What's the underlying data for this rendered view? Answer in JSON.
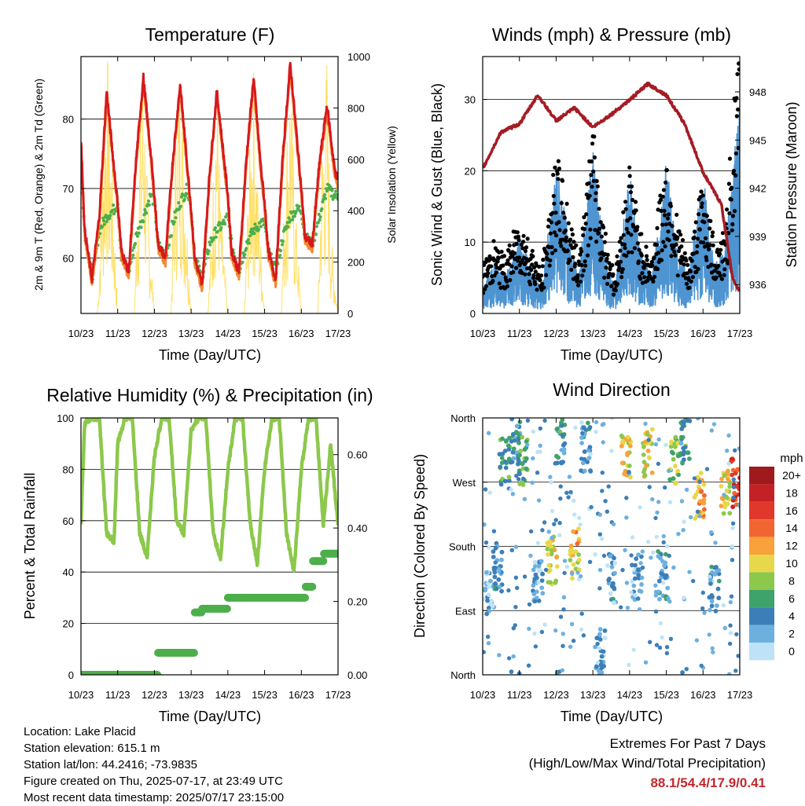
{
  "days": [
    "10/23",
    "11/23",
    "12/23",
    "13/23",
    "14/23",
    "15/23",
    "16/23",
    "17/23"
  ],
  "colors": {
    "temp2m": "#d7191c",
    "temp9m": "#f28a30",
    "dewpoint": "#4daf4a",
    "solar": "#ffe066",
    "wind": "#4d94d1",
    "gust": "#000000",
    "pressure": "#a51c24",
    "rh": "#8cc84b",
    "precip": "#4daf4a",
    "extremes": "#c1272d"
  },
  "panels": {
    "temperature": {
      "title": "Temperature (F)",
      "xlabel": "Time (Day/UTC)",
      "ylabel_left": "2m & 9m T (Red, Orange) & 2m Td (Green)",
      "ylabel_right": "Solar Insolation (Yellow)",
      "left_ticks": [
        "60",
        "70",
        "80"
      ],
      "right_ticks": [
        "0",
        "200",
        "400",
        "600",
        "800",
        "1000"
      ]
    },
    "winds": {
      "title": "Winds (mph) & Pressure (mb)",
      "xlabel": "Time (Day/UTC)",
      "ylabel_left": "Sonic Wind & Gust (Blue, Black)",
      "ylabel_right": "Station Pressure (Maroon)",
      "left_ticks": [
        "0",
        "10",
        "20",
        "30"
      ],
      "right_ticks": [
        "936",
        "939",
        "942",
        "945",
        "948"
      ]
    },
    "humidity": {
      "title": "Relative Humidity (%) & Precipitation (in)",
      "xlabel": "Time (Day/UTC)",
      "ylabel_left": "Percent & Total Rainfall",
      "left_ticks": [
        "0",
        "20",
        "40",
        "60",
        "80",
        "100"
      ],
      "right_ticks": [
        "0.00",
        "0.20",
        "0.40",
        "0.60"
      ]
    },
    "direction": {
      "title": "Wind Direction",
      "xlabel": "Time (Day/UTC)",
      "ylabel_left": "Direction (Colored By Speed)",
      "dir_ticks": [
        "North",
        "East",
        "South",
        "West",
        "North"
      ],
      "legend_title": "mph",
      "legend_labels": [
        "20+",
        "18",
        "16",
        "14",
        "12",
        "10",
        "8",
        "6",
        "4",
        "2",
        "0"
      ],
      "legend_colors": [
        "#9e1a1c",
        "#c42127",
        "#e0382b",
        "#f16630",
        "#f9a13a",
        "#e6d84a",
        "#8cc84b",
        "#3ea26b",
        "#3c7fb8",
        "#6db0e0",
        "#bfe3f6"
      ]
    }
  },
  "chart_data": [
    {
      "type": "line",
      "title": "Temperature (F)",
      "xlabel": "Time (Day/UTC)",
      "ylabel": "2m & 9m T (Red, Orange) & 2m Td (Green)",
      "ylim": [
        52,
        89
      ],
      "y2lim": [
        0,
        1000
      ],
      "grid": true,
      "series": [
        {
          "name": "2m T",
          "axis": "left",
          "x": [
            0,
            0.1,
            0.3,
            0.5,
            0.7,
            0.9,
            1,
            1.1,
            1.3,
            1.5,
            1.7,
            1.9,
            2,
            2.1,
            2.3,
            2.5,
            2.7,
            2.9,
            3,
            3.1,
            3.3,
            3.5,
            3.7,
            3.9,
            4,
            4.1,
            4.3,
            4.5,
            4.7,
            4.9,
            5,
            5.1,
            5.3,
            5.5,
            5.7,
            5.9,
            6,
            6.1,
            6.3,
            6.5,
            6.7,
            6.9,
            7
          ],
          "values": [
            77,
            64,
            57,
            66,
            84,
            73,
            68,
            61,
            58,
            74,
            86,
            75,
            69,
            62,
            60,
            74,
            85,
            73,
            67,
            60,
            56,
            72,
            84,
            74,
            69,
            61,
            58,
            74,
            86,
            73,
            68,
            61,
            57,
            75,
            88,
            76,
            70,
            63,
            62,
            74,
            82,
            73,
            71
          ]
        },
        {
          "name": "2m Td",
          "axis": "left",
          "x": [
            0,
            0.1,
            0.3,
            0.5,
            0.7,
            0.9,
            1,
            1.1,
            1.3,
            1.5,
            1.7,
            1.9,
            2,
            2.1,
            2.3,
            2.5,
            2.7,
            2.9,
            3,
            3.1,
            3.3,
            3.5,
            3.7,
            3.9,
            4,
            4.1,
            4.3,
            4.5,
            4.7,
            4.9,
            5,
            5.1,
            5.3,
            5.5,
            5.7,
            5.9,
            6,
            6.1,
            6.3,
            6.5,
            6.7,
            6.9,
            7
          ],
          "values": [
            74,
            64,
            57,
            64,
            66,
            67,
            68,
            60,
            58,
            63,
            66,
            69,
            68,
            62,
            60,
            65,
            68,
            70,
            67,
            60,
            57,
            62,
            64,
            65,
            66,
            62,
            58,
            62,
            64,
            65,
            65,
            61,
            58,
            63,
            66,
            67,
            67,
            63,
            62,
            66,
            70,
            69,
            69
          ]
        },
        {
          "name": "Solar Insolation",
          "axis": "right",
          "x": [
            0,
            0.45,
            0.55,
            0.7,
            0.8,
            1,
            1.45,
            1.55,
            1.7,
            1.8,
            2,
            2.45,
            2.55,
            2.7,
            2.8,
            3,
            3.45,
            3.55,
            3.7,
            3.8,
            4,
            4.45,
            4.55,
            4.7,
            4.8,
            5,
            5.45,
            5.55,
            5.7,
            5.8,
            6,
            6.45,
            6.55,
            6.7,
            6.8,
            7
          ],
          "values": [
            0,
            0,
            400,
            1000,
            700,
            0,
            0,
            500,
            950,
            500,
            0,
            0,
            600,
            980,
            600,
            0,
            0,
            300,
            950,
            400,
            0,
            0,
            450,
            900,
            500,
            0,
            0,
            500,
            950,
            500,
            0,
            0,
            600,
            950,
            300,
            0
          ]
        }
      ]
    },
    {
      "type": "line",
      "title": "Winds (mph) & Pressure (mb)",
      "xlabel": "Time (Day/UTC)",
      "ylabel": "Sonic Wind & Gust (Blue, Black)",
      "ylim": [
        0,
        36
      ],
      "y2lim": [
        934.2,
        950.2
      ],
      "grid": true,
      "series": [
        {
          "name": "Sonic Wind",
          "axis": "left",
          "x": [
            0,
            0.3,
            0.6,
            1,
            1.3,
            1.6,
            2,
            2.3,
            2.6,
            3,
            3.3,
            3.6,
            4,
            4.3,
            4.6,
            5,
            5.3,
            5.6,
            6,
            6.3,
            6.6,
            6.8,
            7
          ],
          "values": [
            2,
            4,
            3,
            6,
            4,
            2,
            12,
            7,
            3,
            13,
            5,
            2,
            11,
            5,
            3,
            12,
            5,
            3,
            11,
            4,
            5,
            12,
            17
          ]
        },
        {
          "name": "Gust",
          "axis": "left",
          "x": [
            0,
            0.3,
            0.6,
            1,
            1.3,
            1.6,
            2,
            2.3,
            2.6,
            3,
            3.3,
            3.6,
            4,
            4.3,
            4.6,
            5,
            5.3,
            5.6,
            6,
            6.3,
            6.6,
            6.8,
            7
          ],
          "values": [
            6,
            9,
            7,
            12,
            9,
            5,
            20,
            14,
            7,
            23,
            11,
            5,
            19,
            10,
            7,
            20,
            12,
            6,
            17,
            9,
            10,
            25,
            33
          ]
        },
        {
          "name": "Station Pressure",
          "axis": "right",
          "x": [
            0,
            0.5,
            1,
            1.5,
            2,
            2.5,
            3,
            3.5,
            4,
            4.5,
            5,
            5.5,
            6,
            6.5,
            6.8,
            7
          ],
          "values": [
            943.2,
            945.5,
            946.0,
            947.8,
            946.2,
            947.0,
            945.8,
            946.6,
            947.5,
            948.5,
            947.8,
            946.0,
            943.0,
            941.0,
            936.5,
            935.5
          ]
        }
      ]
    },
    {
      "type": "line",
      "title": "Relative Humidity (%) & Precipitation (in)",
      "xlabel": "Time (Day/UTC)",
      "ylabel": "Percent & Total Rainfall",
      "ylim": [
        0,
        100
      ],
      "y2lim": [
        0,
        0.7
      ],
      "grid": true,
      "series": [
        {
          "name": "Relative Humidity",
          "axis": "left",
          "x": [
            0,
            0.1,
            0.3,
            0.5,
            0.7,
            0.9,
            1,
            1.2,
            1.4,
            1.6,
            1.8,
            2,
            2.2,
            2.4,
            2.6,
            2.8,
            3,
            3.2,
            3.4,
            3.6,
            3.8,
            4,
            4.2,
            4.4,
            4.6,
            4.8,
            5,
            5.2,
            5.4,
            5.6,
            5.8,
            6,
            6.2,
            6.4,
            6.6,
            6.8,
            7
          ],
          "values": [
            59,
            98,
            100,
            100,
            55,
            52,
            90,
            100,
            100,
            55,
            46,
            85,
            100,
            100,
            60,
            55,
            95,
            100,
            100,
            55,
            45,
            80,
            100,
            100,
            60,
            43,
            80,
            100,
            100,
            55,
            40,
            80,
            100,
            100,
            58,
            90,
            58
          ]
        },
        {
          "name": "Total Precipitation",
          "axis": "right",
          "x": [
            0,
            1.2,
            2,
            2.1,
            2.9,
            3.1,
            3.3,
            4,
            4.9,
            5.9,
            6.1,
            6.3,
            6.6,
            7
          ],
          "values": [
            0.0,
            0.0,
            0.0,
            0.06,
            0.06,
            0.17,
            0.18,
            0.21,
            0.21,
            0.21,
            0.24,
            0.31,
            0.33,
            0.4
          ]
        }
      ]
    },
    {
      "type": "scatter",
      "title": "Wind Direction",
      "xlabel": "Time (Day/UTC)",
      "ylabel": "Direction (Colored By Speed)",
      "ylim": [
        0,
        360
      ],
      "grid": true,
      "series": [
        {
          "name": "Wind Direction",
          "x": [
            0.2,
            0.4,
            0.6,
            0.9,
            1.1,
            1.5,
            1.9,
            2.1,
            2.5,
            2.8,
            3.2,
            3.5,
            3.9,
            4.2,
            4.5,
            4.9,
            5.2,
            5.5,
            5.9,
            6.3,
            6.6,
            6.9
          ],
          "values": [
            120,
            150,
            300,
            330,
            300,
            135,
            160,
            330,
            170,
            320,
            30,
            135,
            300,
            140,
            310,
            140,
            300,
            330,
            250,
            120,
            260,
            270
          ],
          "speed": [
            2,
            3,
            6,
            4,
            6,
            3,
            10,
            5,
            11,
            3,
            2,
            3,
            11,
            3,
            10,
            3,
            8,
            5,
            12,
            3,
            10,
            16
          ]
        }
      ]
    }
  ],
  "info": {
    "location": "Location: Lake Placid",
    "elevation": "Station elevation: 615.1 m",
    "latlon": "Station lat/lon: 44.2416; -73.9835",
    "created": "Figure created on Thu, 2025-07-17, at 23:49 UTC",
    "recent": "Most recent data timestamp: 2025/07/17 23:15:00"
  },
  "extremes": {
    "line1": "Extremes For Past 7 Days",
    "line2": "(High/Low/Max Wind/Total Precipitation)",
    "values": "88.1/54.4/17.9/0.41"
  }
}
